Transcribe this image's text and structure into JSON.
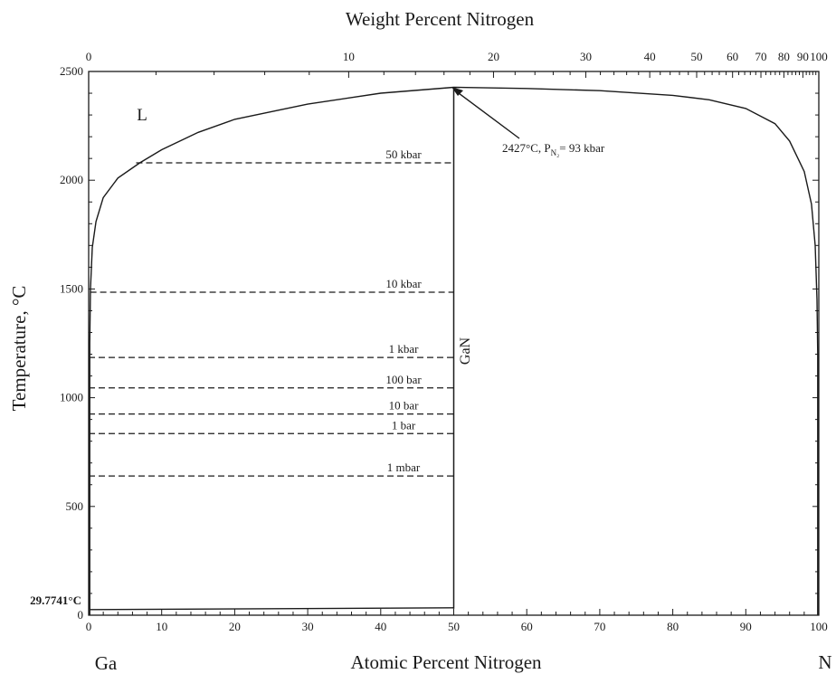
{
  "chart_data": {
    "type": "line",
    "title": "",
    "xlabel": "Atomic Percent Nitrogen",
    "ylabel": "Temperature, °C",
    "x2label": "Weight Percent Nitrogen",
    "xlim": [
      0,
      100
    ],
    "ylim": [
      0,
      2500
    ],
    "grid": false,
    "x_ticks": [
      "0",
      "10",
      "20",
      "30",
      "40",
      "50",
      "60",
      "70",
      "80",
      "90",
      "100"
    ],
    "y_ticks": [
      "0",
      "500",
      "1000",
      "1500",
      "2000",
      "2500"
    ],
    "x2_ticks": [
      {
        "label": "0",
        "wt": 0
      },
      {
        "label": "10",
        "wt": 10
      },
      {
        "label": "20",
        "wt": 20
      },
      {
        "label": "30",
        "wt": 30
      },
      {
        "label": "40",
        "wt": 40
      },
      {
        "label": "50",
        "wt": 50
      },
      {
        "label": "60",
        "wt": 60
      },
      {
        "label": "70",
        "wt": 70
      },
      {
        "label": "80",
        "wt": 80
      },
      {
        "label": "90",
        "wt": 90
      },
      {
        "label": "100",
        "wt": 100
      }
    ],
    "element_labels": {
      "left": "Ga",
      "right": "N"
    },
    "phase_labels": {
      "liquid": "L",
      "compound": "GaN"
    },
    "ga_melting_label": "29.7741°C",
    "ga_melting_temp": 29.7741,
    "compound_at_pct": 50,
    "max_point": {
      "x": 50,
      "y": 2427,
      "label_main": "2427°C, P",
      "label_sub": "N₂",
      "label_tail": "= 93 kbar"
    },
    "liquidus": {
      "x": [
        0.15,
        0.25,
        0.5,
        1,
        2,
        4,
        7,
        10,
        15,
        20,
        30,
        40,
        50,
        60,
        70,
        80,
        85,
        90,
        94,
        96,
        98,
        99,
        99.5,
        99.75,
        99.85
      ],
      "y": [
        1250,
        1500,
        1690,
        1810,
        1920,
        2010,
        2080,
        2140,
        2220,
        2280,
        2350,
        2400,
        2427,
        2422,
        2412,
        2390,
        2370,
        2330,
        2260,
        2180,
        2040,
        1890,
        1700,
        1450,
        1200
      ]
    },
    "isobars": [
      {
        "label": "50 kbar",
        "y": 2080,
        "x_start": 6.5
      },
      {
        "label": "10 kbar",
        "y": 1485,
        "x_start": 0.2
      },
      {
        "label": "1 kbar",
        "y": 1185,
        "x_start": 0
      },
      {
        "label": "100 bar",
        "y": 1045,
        "x_start": 0
      },
      {
        "label": "10 bar",
        "y": 925,
        "x_start": 0
      },
      {
        "label": "1 bar",
        "y": 835,
        "x_start": 0
      },
      {
        "label": "1 mbar",
        "y": 640,
        "x_start": 0
      }
    ]
  }
}
